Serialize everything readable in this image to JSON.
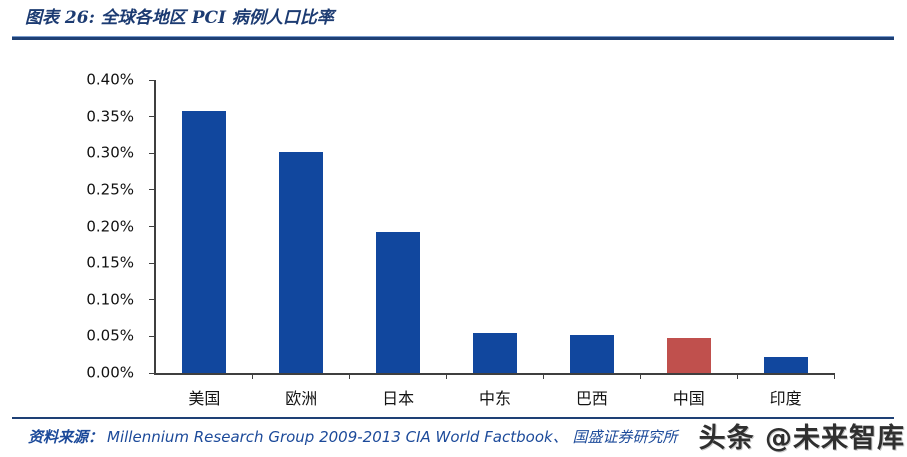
{
  "header": {
    "title": "图表 26:  全球各地区 PCI 病例人口比率"
  },
  "footer": {
    "source_label": "资料来源：",
    "source_text": "Millennium Research Group 2009-2013 CIA World Factbook、 国盛证券研究所",
    "watermark": "头条 @未来智库"
  },
  "colors": {
    "bar_blue": "#11479E",
    "bar_red": "#C0504D",
    "title_blue": "#1C3B72",
    "divider_blue": "#1E4075",
    "footer_blue": "#1C4A9A",
    "axis_gray": "#3F3F3F",
    "watermark_gray": "#2F2F2F"
  },
  "chart_data": {
    "type": "bar",
    "title": "全球各地区 PCI 病例人口比率",
    "categories": [
      "美国",
      "欧洲",
      "日本",
      "中东",
      "巴西",
      "中国",
      "印度"
    ],
    "values": [
      0.358,
      0.302,
      0.192,
      0.054,
      0.052,
      0.048,
      0.022
    ],
    "unit": "%",
    "bar_colors": [
      "#11479E",
      "#11479E",
      "#11479E",
      "#11479E",
      "#11479E",
      "#C0504D",
      "#11479E"
    ],
    "xlabel": "",
    "ylabel": "",
    "ylim": [
      0,
      0.4
    ],
    "yticks": [
      "0.00%",
      "0.05%",
      "0.10%",
      "0.15%",
      "0.20%",
      "0.25%",
      "0.30%",
      "0.35%",
      "0.40%"
    ],
    "grid": false,
    "legend": false
  }
}
